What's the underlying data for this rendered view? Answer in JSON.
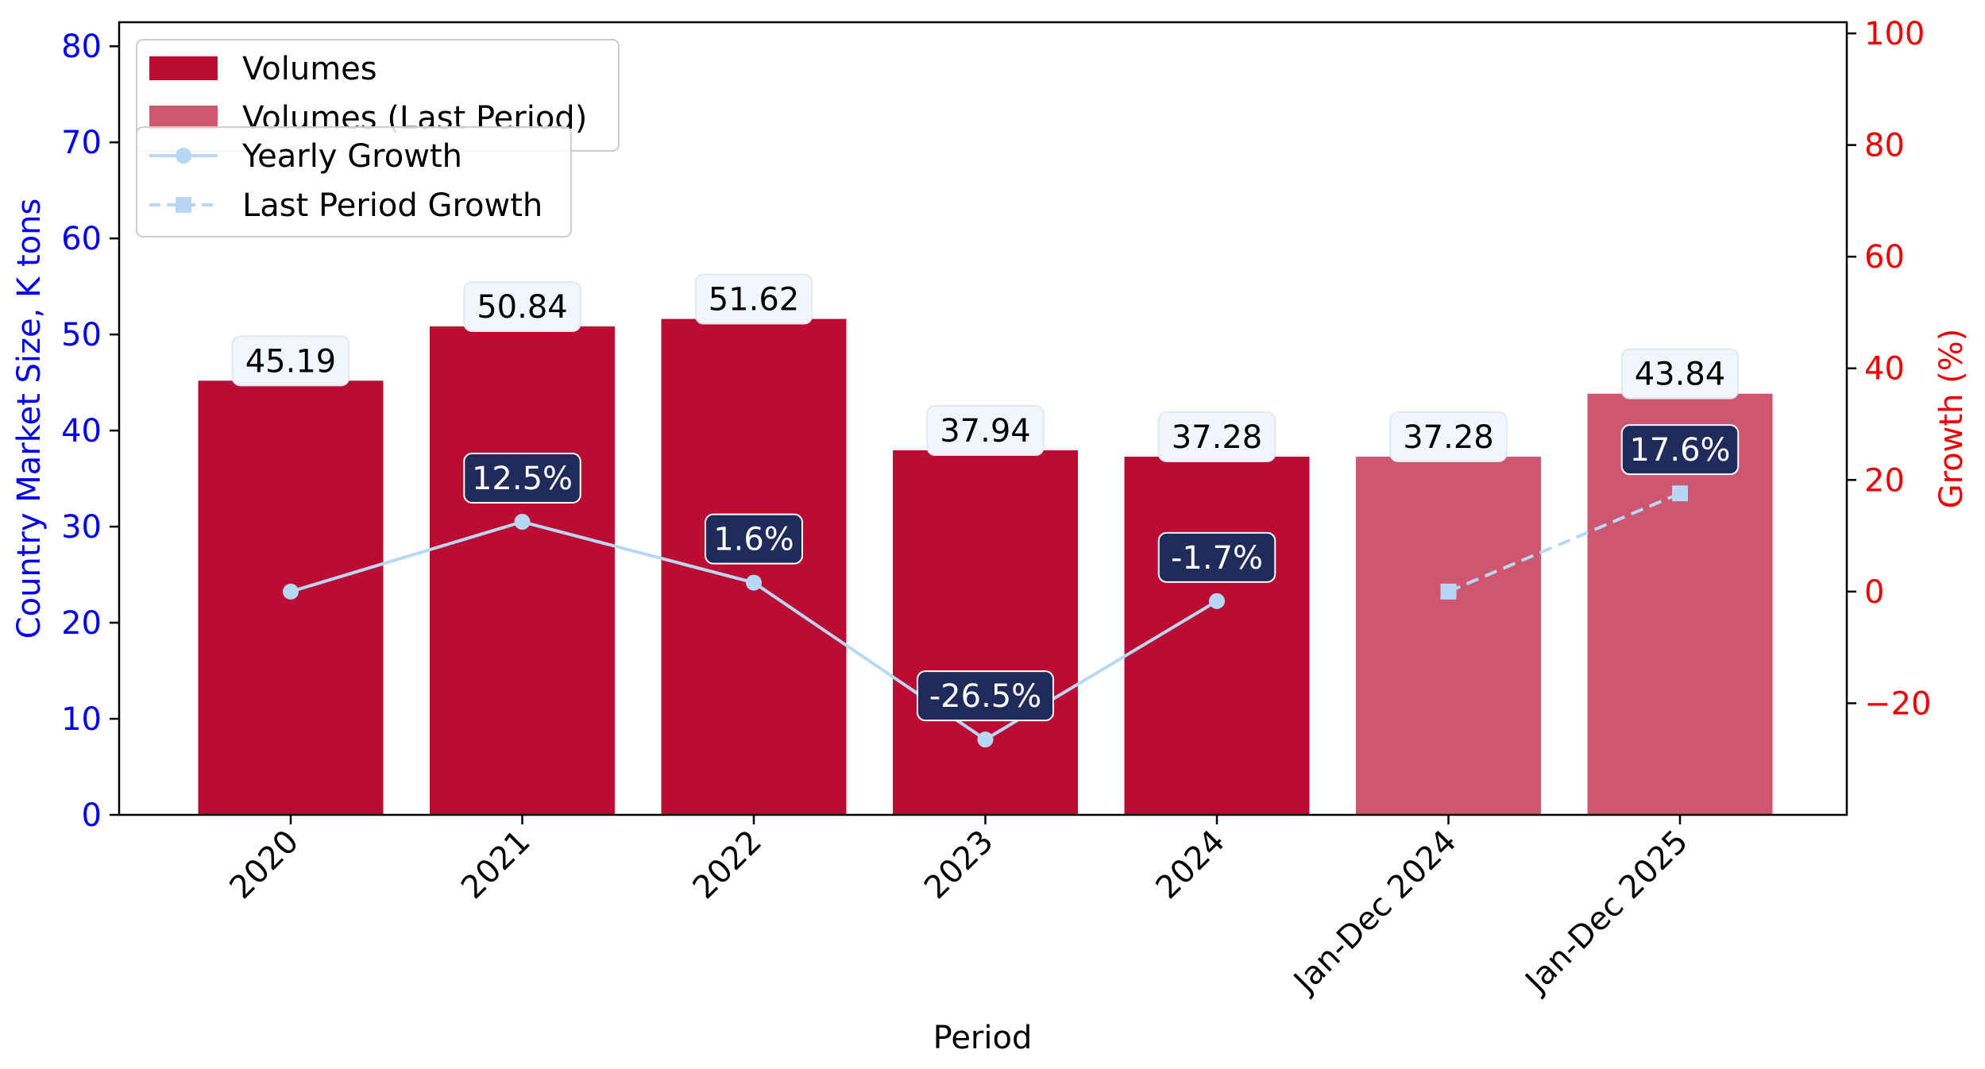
{
  "chart_data": {
    "type": "bar",
    "xlabel": "Period",
    "ylabel": "Country Market Size, K tons",
    "y2label": "Growth (%)",
    "ylim": [
      0,
      82.5
    ],
    "y2lim": [
      -40,
      102
    ],
    "yticks": [
      "0",
      "10",
      "20",
      "30",
      "40",
      "50",
      "60",
      "70",
      "80"
    ],
    "y2ticks": [
      "−20",
      "0",
      "20",
      "40",
      "60",
      "80",
      "100"
    ],
    "categories": [
      "2020",
      "2021",
      "2022",
      "2023",
      "2024",
      "Jan-Dec 2024",
      "Jan-Dec 2025"
    ],
    "series": [
      {
        "name": "Volumes",
        "type": "bar",
        "color": "#bc0c31",
        "values": [
          45.19,
          50.84,
          51.62,
          37.94,
          37.28,
          null,
          null
        ],
        "labels": [
          "45.19",
          "50.84",
          "51.62",
          "37.94",
          "37.28",
          "",
          ""
        ]
      },
      {
        "name": "Volumes (Last Period)",
        "type": "bar",
        "color": "#d0566f",
        "values": [
          null,
          null,
          null,
          null,
          null,
          37.28,
          43.84
        ],
        "labels": [
          "",
          "",
          "",
          "",
          "",
          "37.28",
          "43.84"
        ]
      },
      {
        "name": "Yearly Growth",
        "type": "line",
        "axis": "right",
        "color": "#b8d7f5",
        "values": [
          0,
          12.5,
          1.6,
          -26.5,
          -1.7,
          null,
          null
        ],
        "labels": [
          "",
          "12.5%",
          "1.6%",
          "-26.5%",
          "-1.7%",
          "",
          ""
        ]
      },
      {
        "name": "Last Period Growth",
        "type": "line",
        "axis": "right",
        "color": "#b8d7f5",
        "dashed": true,
        "values": [
          null,
          null,
          null,
          null,
          null,
          0,
          17.6
        ],
        "labels": [
          "",
          "",
          "",
          "",
          "",
          "",
          "17.6%"
        ]
      }
    ],
    "legend": "top-left",
    "grid": false,
    "colors": {
      "left_axis": "#0000ee",
      "right_axis": "#ee0000",
      "growth_label_bg": "#1f2b5a",
      "value_label_bg": "#f0f6fc"
    }
  }
}
